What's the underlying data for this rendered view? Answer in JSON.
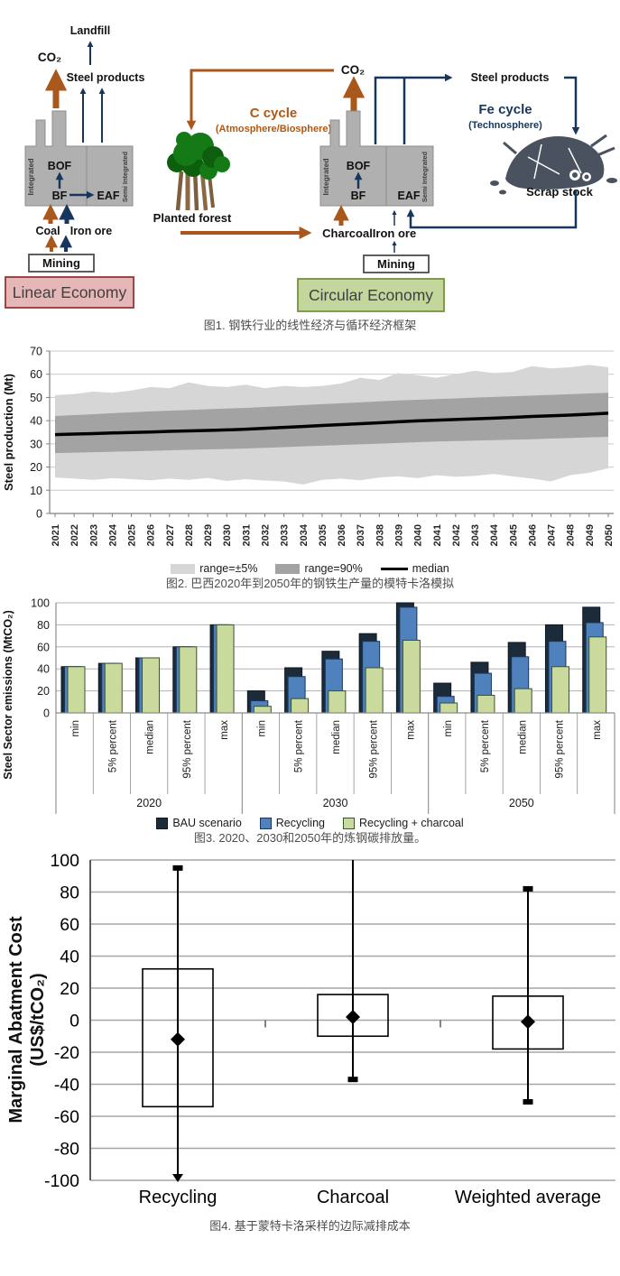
{
  "figure1": {
    "caption": "图1. 钢铁行业的线性经济与循环经济框架",
    "colors": {
      "carbon_flow": "#a9571b",
      "iron_flow": "#17365d",
      "factory_fill": "#b0b0b0",
      "linear_fill": "#e5b8b7",
      "linear_border": "#953735",
      "circular_fill": "#c3d69b",
      "circular_border": "#76923c",
      "tree_green": "#157a15",
      "trunk_brown": "#7d5f3f",
      "scrap_gray": "#49525e"
    },
    "labels": {
      "landfill": "Landfill",
      "co2": "CO₂",
      "steel_products": "Steel products",
      "bof": "BOF",
      "bf": "BF",
      "eaf": "EAF",
      "integrated": "Integrated",
      "semi_integrated": "Semi Integrated",
      "coal": "Coal",
      "iron_ore": "Iron ore",
      "mining": "Mining",
      "linear_economy": "Linear Economy",
      "c_cycle": "C cycle",
      "c_cycle_sub": "(Atmosphere/Biosphere)",
      "planted_forest": "Planted forest",
      "charcoal": "Charcoal",
      "fe_cycle": "Fe cycle",
      "fe_cycle_sub": "(Technosphere)",
      "scrap_stock": "Scrap  stock",
      "circular_economy": "Circular Economy"
    }
  },
  "chart_data": [
    {
      "id": "steel-production-monte-carlo",
      "type": "area",
      "caption": "图2. 巴西2020年到2050年的钢铁生产量的模特卡洛模拟",
      "ylabel": "Steel production (Mt)",
      "ylim": [
        0,
        70
      ],
      "ytick_step": 10,
      "grid": true,
      "legend_position": "bottom",
      "x_years": [
        2021,
        2022,
        2023,
        2024,
        2025,
        2026,
        2027,
        2028,
        2029,
        2030,
        2031,
        2032,
        2033,
        2034,
        2035,
        2036,
        2037,
        2038,
        2039,
        2040,
        2041,
        2042,
        2043,
        2044,
        2045,
        2046,
        2047,
        2048,
        2049,
        2050
      ],
      "series": [
        {
          "name": "range=±5%",
          "type": "band",
          "color": "#d6d6d6",
          "low": [
            15.5,
            15.0,
            14.5,
            15.2,
            14.8,
            14.3,
            15.0,
            14.5,
            15.3,
            14.0,
            14.8,
            14.2,
            13.8,
            12.5,
            14.5,
            15.0,
            14.3,
            15.5,
            16.0,
            15.2,
            16.5,
            15.8,
            16.2,
            17.0,
            16.0,
            15.0,
            13.8,
            16.5,
            17.5,
            19.5
          ],
          "high": [
            51.0,
            51.5,
            52.5,
            52.0,
            53.0,
            54.5,
            54.0,
            56.5,
            55.0,
            54.5,
            55.5,
            54.0,
            55.0,
            54.5,
            55.0,
            56.0,
            58.5,
            57.5,
            60.5,
            59.5,
            58.5,
            60.0,
            61.5,
            60.5,
            61.0,
            63.5,
            62.5,
            63.0,
            64.0,
            63.0
          ]
        },
        {
          "name": "range=90%",
          "type": "band",
          "color": "#a3a3a3",
          "low": [
            26.0,
            26.2,
            26.4,
            26.6,
            26.8,
            27.0,
            27.2,
            27.4,
            27.6,
            27.8,
            28.0,
            28.3,
            28.6,
            28.9,
            29.2,
            29.5,
            29.8,
            30.1,
            30.4,
            30.7,
            31.0,
            31.2,
            31.4,
            31.6,
            31.8,
            32.0,
            32.3,
            32.5,
            32.8,
            33.0
          ],
          "high": [
            42.0,
            42.4,
            42.8,
            43.2,
            43.6,
            44.0,
            44.3,
            44.6,
            44.9,
            45.2,
            45.5,
            45.9,
            46.3,
            46.7,
            47.1,
            47.5,
            47.9,
            48.3,
            48.7,
            49.0,
            49.3,
            49.6,
            49.9,
            50.2,
            50.5,
            50.8,
            51.1,
            51.4,
            51.7,
            52.0
          ]
        },
        {
          "name": "median",
          "type": "line",
          "color": "#000000",
          "values": [
            34.0,
            34.2,
            34.4,
            34.7,
            34.9,
            35.1,
            35.4,
            35.6,
            35.8,
            36.0,
            36.3,
            36.7,
            37.1,
            37.5,
            37.9,
            38.3,
            38.7,
            39.1,
            39.5,
            39.9,
            40.2,
            40.5,
            40.8,
            41.1,
            41.4,
            41.8,
            42.1,
            42.4,
            42.8,
            43.2
          ]
        }
      ]
    },
    {
      "id": "steel-sector-emissions",
      "type": "bar",
      "caption": "图3. 2020、2030和2050年的炼钢碳排放量。",
      "ylabel": "Steel Sector emissions (MtCO₂)",
      "ylim": [
        0,
        100
      ],
      "ytick_step": 20,
      "grid": true,
      "legend_position": "bottom",
      "group_years": [
        "2020",
        "2030",
        "2050"
      ],
      "stat_labels": [
        "min",
        "5% percent",
        "median",
        "95% percent",
        "max"
      ],
      "series": [
        {
          "name": "BAU scenario",
          "color": "#1c2b3a",
          "border": "#0e1822",
          "values": {
            "2020": [
              42,
              45,
              50,
              60,
              80
            ],
            "2030": [
              20,
              41,
              56,
              72,
              100
            ],
            "2050": [
              27,
              46,
              64,
              80,
              96
            ]
          }
        },
        {
          "name": "Recycling",
          "color": "#4f81bd",
          "border": "#17365d",
          "values": {
            "2020": [
              42,
              45,
              50,
              60,
              80
            ],
            "2030": [
              11,
              33,
              49,
              65,
              96
            ],
            "2050": [
              15,
              36,
              51,
              65,
              82
            ]
          }
        },
        {
          "name": "Recycling + charcoal",
          "color": "#c9da9c",
          "border": "#3a5130",
          "values": {
            "2020": [
              42,
              45,
              50,
              60,
              80
            ],
            "2030": [
              6,
              13,
              20,
              41,
              66
            ],
            "2050": [
              9,
              16,
              22,
              42,
              69
            ]
          }
        }
      ]
    },
    {
      "id": "marginal-abatement-cost",
      "type": "boxplot",
      "caption": "图4. 基于蒙特卡洛采样的边际减排成本",
      "ylabel_line1": "Marginal Abatment Cost",
      "ylabel_line2": "(US$/tCO₂)",
      "ylim": [
        -100,
        100
      ],
      "ytick_step": 20,
      "grid": true,
      "categories": [
        "Recycling",
        "Charcoal",
        "Weighted average"
      ],
      "boxes": [
        {
          "category": "Recycling",
          "whisker_high": 95,
          "whisker_high_clipped": false,
          "box_top": 32,
          "marker": -12,
          "box_bottom": -54,
          "whisker_low": -105,
          "whisker_low_clipped": true
        },
        {
          "category": "Charcoal",
          "whisker_high": 110,
          "whisker_high_clipped": true,
          "box_top": 16,
          "marker": 2,
          "box_bottom": -10,
          "whisker_low": -37,
          "whisker_low_clipped": false
        },
        {
          "category": "Weighted average",
          "whisker_high": 82,
          "whisker_high_clipped": false,
          "box_top": 15,
          "marker": -1,
          "box_bottom": -18,
          "whisker_low": -51,
          "whisker_low_clipped": false
        }
      ]
    }
  ]
}
